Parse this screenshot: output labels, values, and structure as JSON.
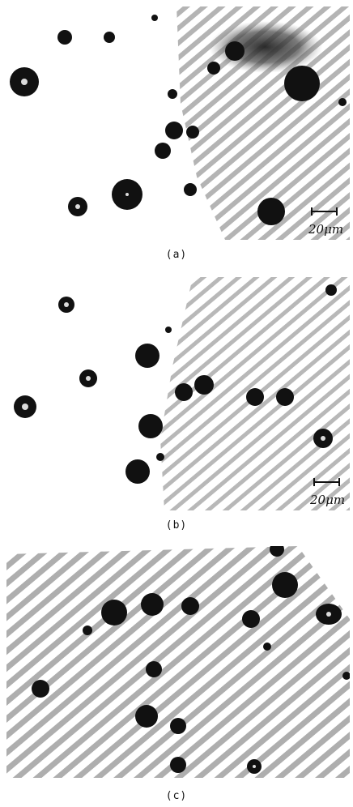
{
  "figure": {
    "panels": [
      {
        "id": "a",
        "caption": "(a)",
        "scale_bar": "20μm"
      },
      {
        "id": "b",
        "caption": "(b)",
        "scale_bar": "20μm"
      },
      {
        "id": "c",
        "caption": "(c)",
        "scale_bar": ""
      }
    ]
  },
  "colors": {
    "particle": "#111111",
    "matrix_texture": "#9a9a9a",
    "background": "#ffffff"
  }
}
